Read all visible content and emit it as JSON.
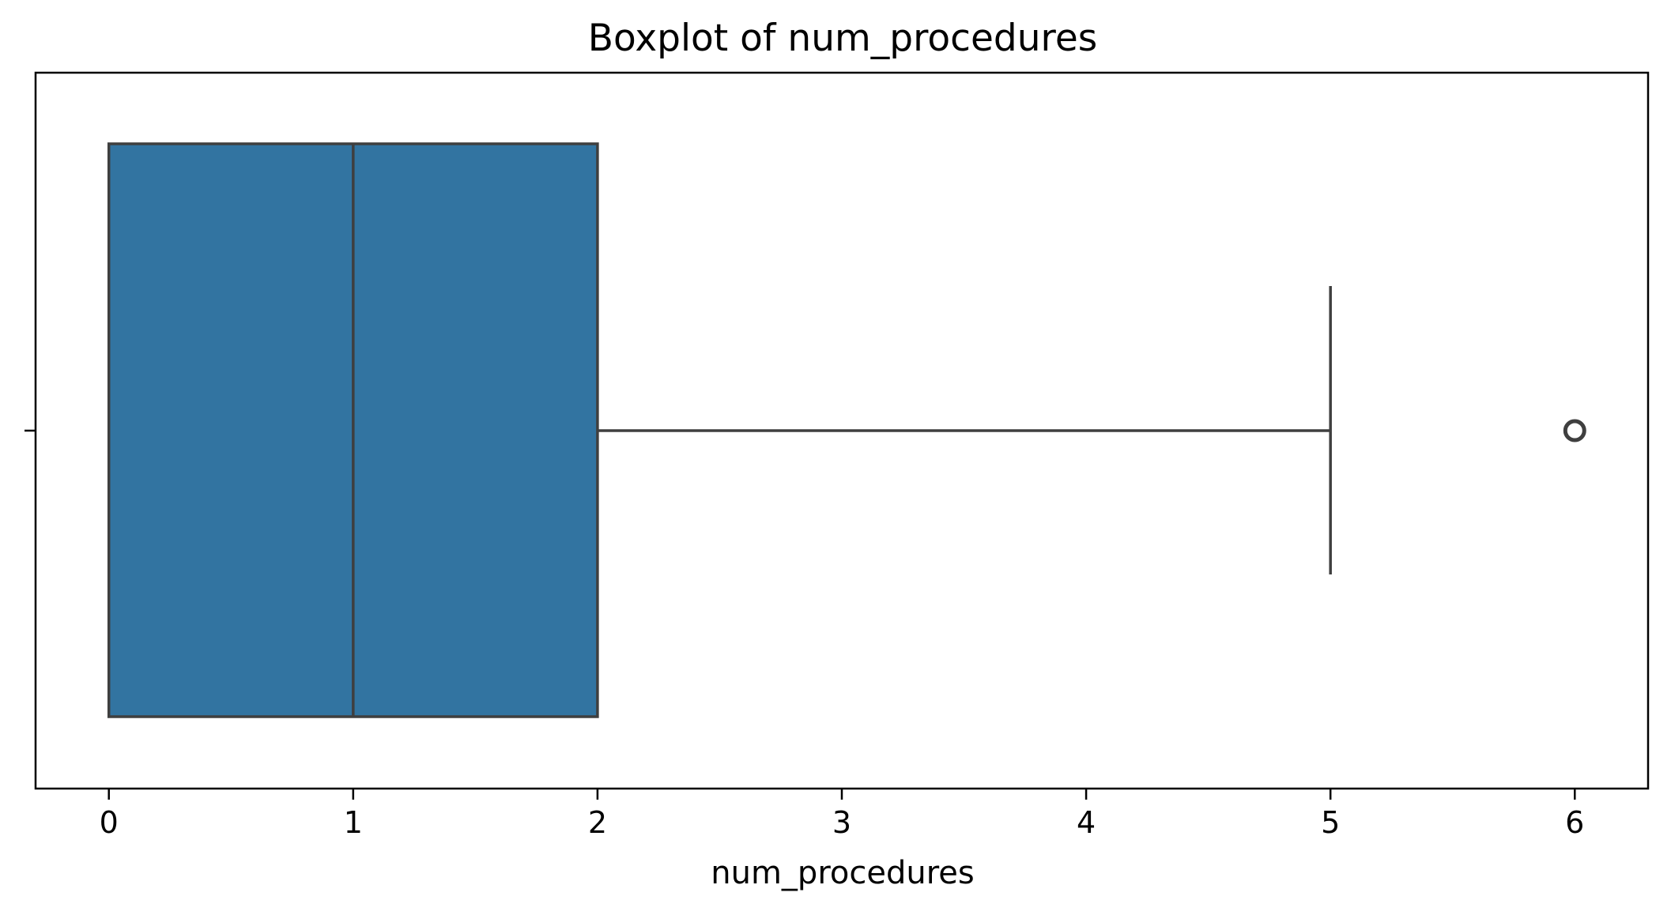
{
  "chart_data": {
    "type": "box",
    "orientation": "horizontal",
    "title": "Boxplot of num_procedures",
    "xlabel": "num_procedures",
    "ylabel": "",
    "xlim": [
      -0.3,
      6.3
    ],
    "xticks": [
      0,
      1,
      2,
      3,
      4,
      5,
      6
    ],
    "xtick_labels": [
      "0",
      "1",
      "2",
      "3",
      "4",
      "5",
      "6"
    ],
    "grid": false,
    "legend": "none",
    "box": {
      "whisker_low": 0,
      "q1": 0,
      "median": 1,
      "q3": 2,
      "whisker_high": 5,
      "outliers": [
        6
      ]
    },
    "colors": {
      "box_fill": "#3274a1",
      "line": "#3f3f3f",
      "axes": "#000000"
    }
  }
}
